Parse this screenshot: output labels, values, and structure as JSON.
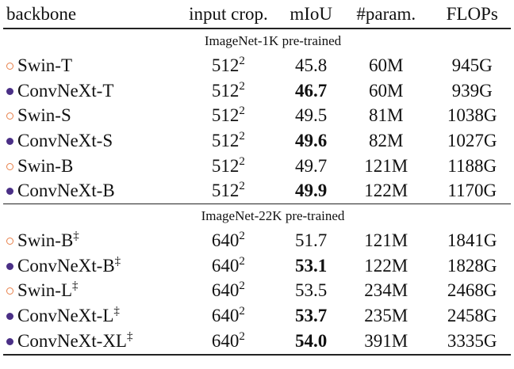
{
  "header": [
    "backbone",
    "input crop.",
    "mIoU",
    "#param.",
    "FLOPs"
  ],
  "sections": [
    {
      "title": "ImageNet-1K pre-trained",
      "rows": [
        {
          "marker": "open",
          "backbone": "Swin-T",
          "crop": "512",
          "crop_sup": "2",
          "miou": "45.8",
          "params": "60M",
          "flops": "945G"
        },
        {
          "marker": "filled",
          "backbone": "ConvNeXt-T",
          "crop": "512",
          "crop_sup": "2",
          "miou": "46.7",
          "bold": true,
          "params": "60M",
          "flops": "939G"
        },
        {
          "marker": "open",
          "backbone": "Swin-S",
          "crop": "512",
          "crop_sup": "2",
          "miou": "49.5",
          "params": "81M",
          "flops": "1038G"
        },
        {
          "marker": "filled",
          "backbone": "ConvNeXt-S",
          "crop": "512",
          "crop_sup": "2",
          "miou": "49.6",
          "bold": true,
          "params": "82M",
          "flops": "1027G"
        },
        {
          "marker": "open",
          "backbone": "Swin-B",
          "crop": "512",
          "crop_sup": "2",
          "miou": "49.7",
          "params": "121M",
          "flops": "1188G"
        },
        {
          "marker": "filled",
          "backbone": "ConvNeXt-B",
          "crop": "512",
          "crop_sup": "2",
          "miou": "49.9",
          "bold": true,
          "params": "122M",
          "flops": "1170G"
        }
      ]
    },
    {
      "title": "ImageNet-22K pre-trained",
      "rows": [
        {
          "marker": "open",
          "backbone": "Swin-B",
          "backbone_sup": "‡",
          "crop": "640",
          "crop_sup": "2",
          "miou": "51.7",
          "params": "121M",
          "flops": "1841G"
        },
        {
          "marker": "filled",
          "backbone": "ConvNeXt-B",
          "backbone_sup": "‡",
          "crop": "640",
          "crop_sup": "2",
          "miou": "53.1",
          "bold": true,
          "params": "122M",
          "flops": "1828G"
        },
        {
          "marker": "open",
          "backbone": "Swin-L",
          "backbone_sup": "‡",
          "crop": "640",
          "crop_sup": "2",
          "miou": "53.5",
          "params": "234M",
          "flops": "2468G"
        },
        {
          "marker": "filled",
          "backbone": "ConvNeXt-L",
          "backbone_sup": "‡",
          "crop": "640",
          "crop_sup": "2",
          "miou": "53.7",
          "bold": true,
          "params": "235M",
          "flops": "2458G"
        },
        {
          "marker": "filled",
          "backbone": "ConvNeXt-XL",
          "backbone_sup": "‡",
          "crop": "640",
          "crop_sup": "2",
          "miou": "54.0",
          "bold": true,
          "params": "391M",
          "flops": "3335G"
        }
      ]
    }
  ]
}
